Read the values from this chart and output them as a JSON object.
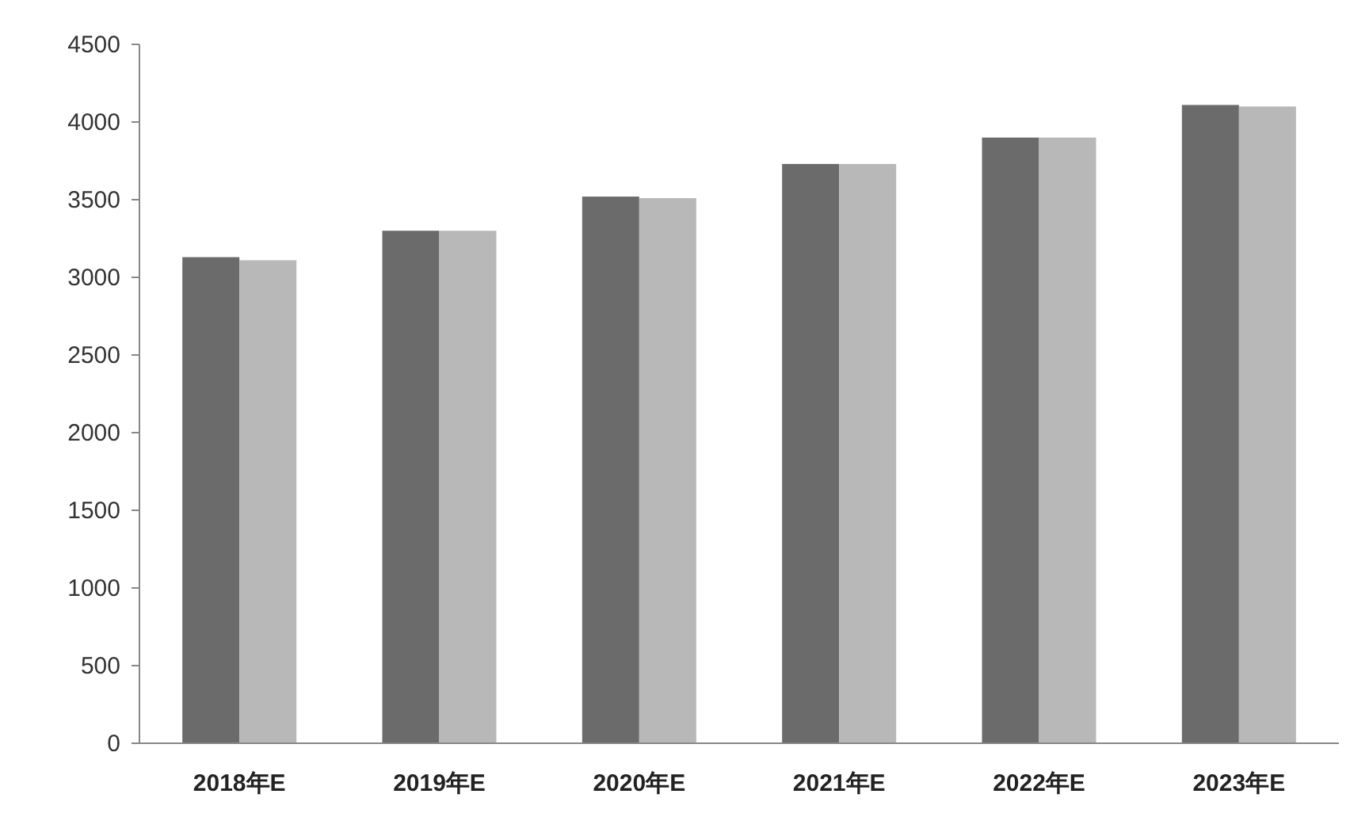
{
  "chart_data": {
    "type": "bar",
    "categories": [
      "2018年E",
      "2019年E",
      "2020年E",
      "2021年E",
      "2022年E",
      "2023年E"
    ],
    "series": [
      {
        "color": "#6b6b6b",
        "values": [
          3130,
          3300,
          3520,
          3730,
          3900,
          4110
        ]
      },
      {
        "color": "#b8b8b8",
        "values": [
          3110,
          3300,
          3510,
          3730,
          3900,
          4100
        ]
      }
    ],
    "ylim": [
      0,
      4500
    ],
    "yticks": [
      0,
      500,
      1000,
      1500,
      2000,
      2500,
      3000,
      3500,
      4000,
      4500
    ]
  }
}
